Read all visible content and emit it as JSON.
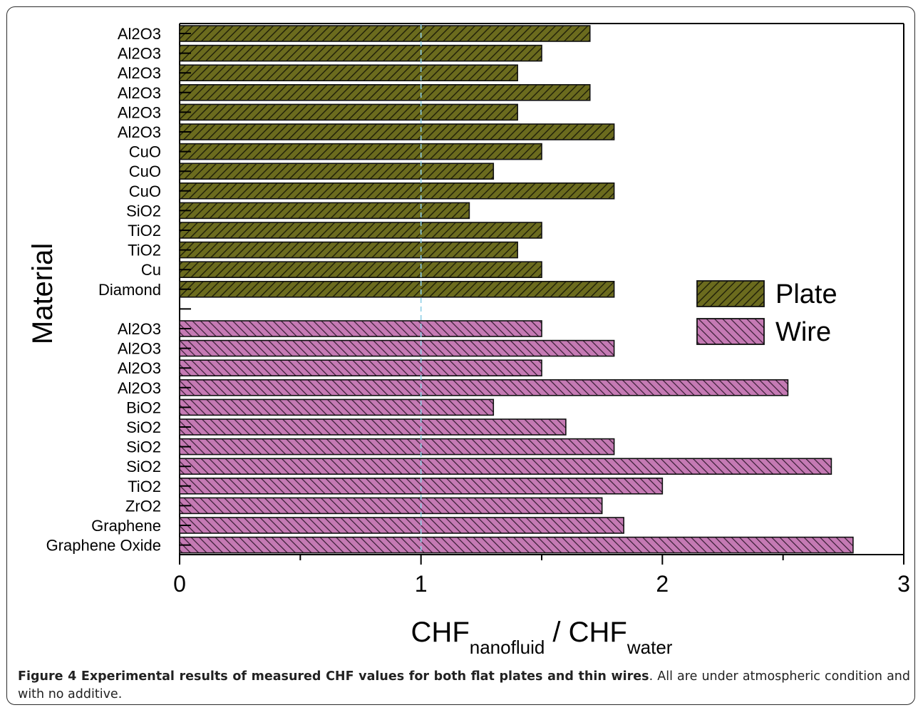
{
  "chart_data": {
    "type": "bar",
    "orientation": "horizontal",
    "xlabel": {
      "main": "CHF",
      "sub1": "nanofluid",
      "sep": " / CHF",
      "sub2": "water"
    },
    "ylabel": "Material",
    "xlim": [
      0,
      3
    ],
    "xticks": [
      "0",
      "1",
      "2",
      "3"
    ],
    "reference_line": 1,
    "legend_position": "right",
    "series": [
      {
        "name": "Plate",
        "color": "#6b6b1e",
        "categories": [
          "Al2O3",
          "Al2O3",
          "Al2O3",
          "Al2O3",
          "Al2O3",
          "Al2O3",
          "CuO",
          "CuO",
          "CuO",
          "SiO2",
          "TiO2",
          "TiO2",
          "Cu",
          "Diamond"
        ],
        "values": [
          1.7,
          1.5,
          1.4,
          1.7,
          1.4,
          1.8,
          1.5,
          1.3,
          1.8,
          1.2,
          1.5,
          1.4,
          1.5,
          1.8
        ]
      },
      {
        "name": "Wire",
        "color": "#b86aa8",
        "categories": [
          "Al2O3",
          "Al2O3",
          "Al2O3",
          "Al2O3",
          "BiO2",
          "SiO2",
          "SiO2",
          "SiO2",
          "TiO2",
          "ZrO2",
          "Graphene",
          "Graphene Oxide"
        ],
        "values": [
          1.5,
          1.8,
          1.5,
          2.52,
          1.3,
          1.6,
          1.8,
          2.7,
          2.0,
          1.75,
          1.84,
          2.79
        ]
      }
    ]
  },
  "caption": {
    "bold": "Figure 4 Experimental results of measured CHF values for both flat plates and thin wires",
    "rest": ". All are under atmospheric condition and with no additive."
  }
}
